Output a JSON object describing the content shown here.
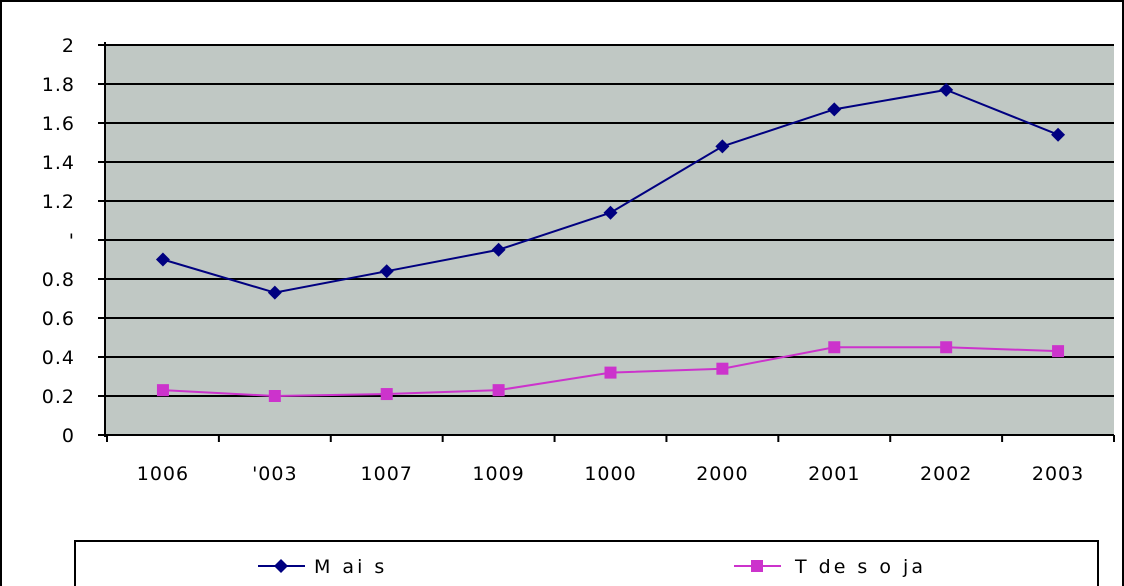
{
  "chart_data": {
    "type": "line",
    "categories": [
      "1006",
      "'003",
      "1007",
      "1009",
      "1000",
      "2000",
      "2001",
      "2002",
      "2003"
    ],
    "series": [
      {
        "name": "M ai s",
        "color": "#000080",
        "marker": "diamond",
        "values": [
          0.9,
          0.73,
          0.84,
          0.95,
          1.14,
          1.48,
          1.67,
          1.77,
          1.54
        ]
      },
      {
        "name": "T de s o ja",
        "color": "#cc33cc",
        "marker": "square",
        "values": [
          0.23,
          0.2,
          0.21,
          0.23,
          0.32,
          0.34,
          0.45,
          0.45,
          0.43
        ]
      }
    ],
    "y_ticks": [
      "0",
      "0.2",
      "0.4",
      "0.6",
      "0.8",
      "'",
      "1.2",
      "1.4",
      "1.6",
      "1.8",
      "2"
    ],
    "ylim": [
      0,
      2
    ],
    "grid": true,
    "legend_position": "bottom",
    "plot_background": "#c0c8c4"
  }
}
